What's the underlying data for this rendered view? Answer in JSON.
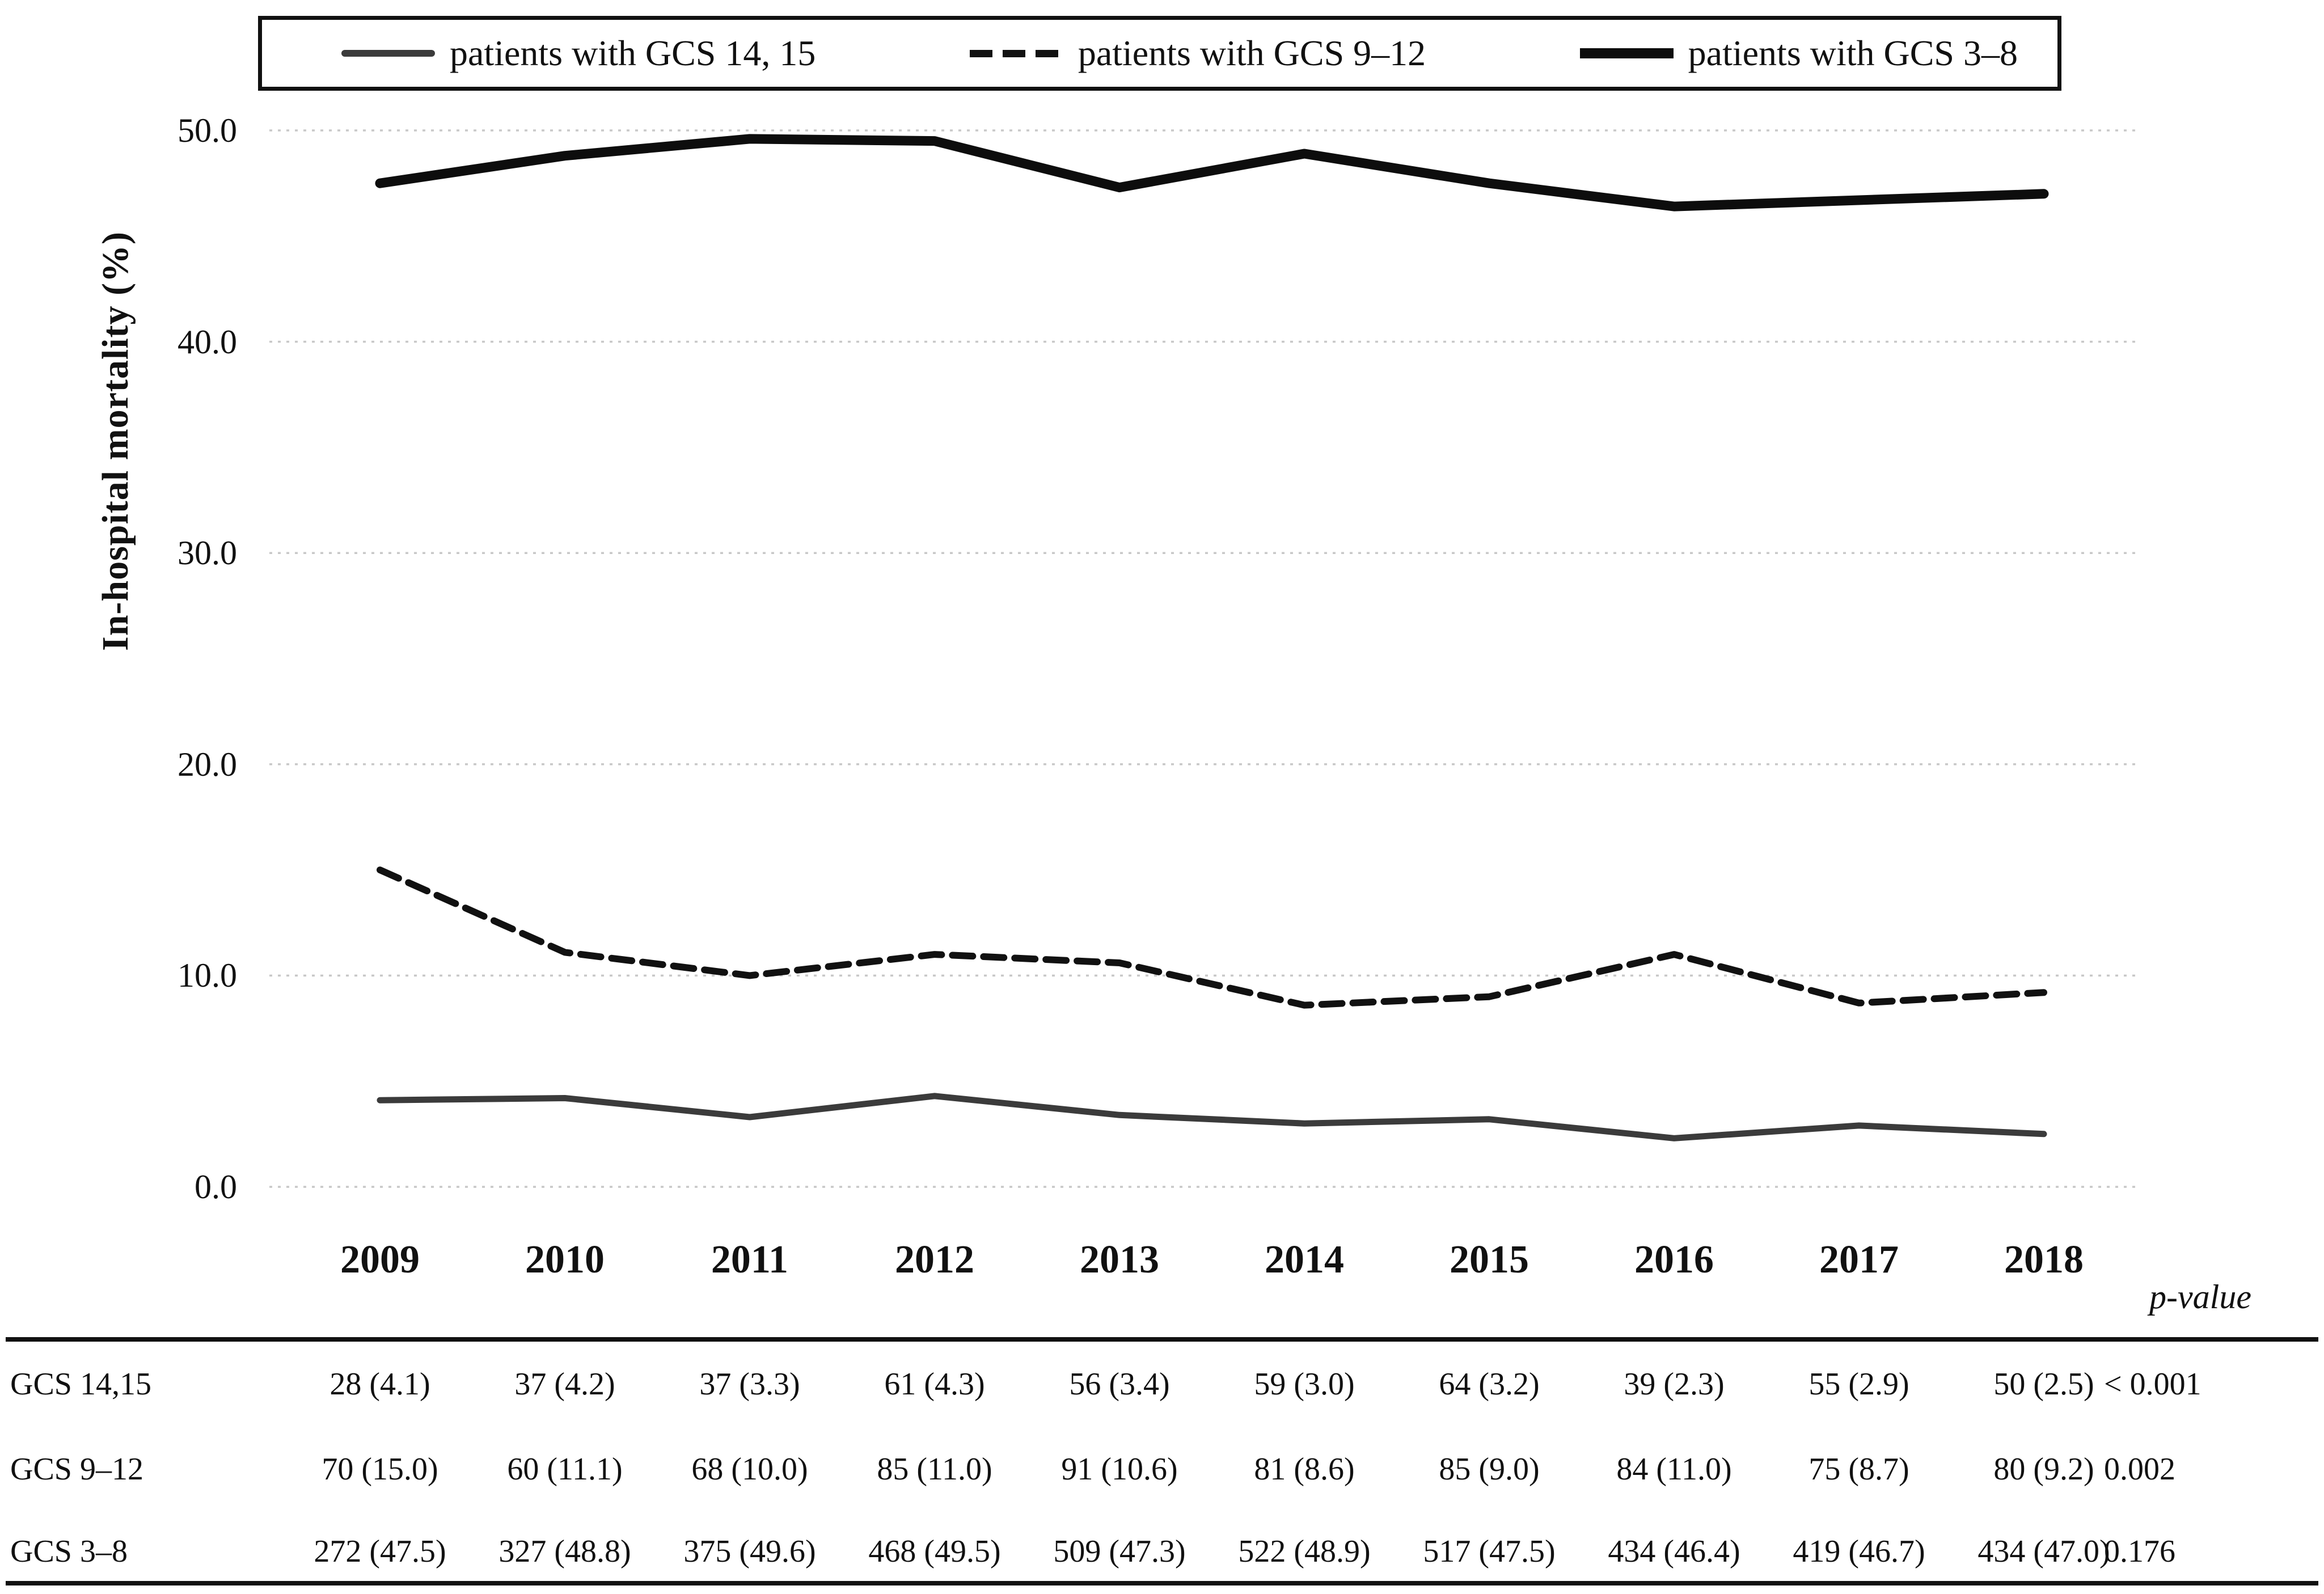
{
  "chart_data": {
    "type": "line",
    "title": "",
    "xlabel": "",
    "ylabel": "In-hospital mortality (%)",
    "ylim": [
      0,
      50
    ],
    "grid": "horizontal-dotted",
    "legend_position": "top",
    "x": [
      "2009",
      "2010",
      "2011",
      "2012",
      "2013",
      "2014",
      "2015",
      "2016",
      "2017",
      "2018"
    ],
    "y_ticks": [
      {
        "label": "50.0",
        "value": 50
      },
      {
        "label": "40.0",
        "value": 40
      },
      {
        "label": "30.0",
        "value": 30
      },
      {
        "label": "20.0",
        "value": 20
      },
      {
        "label": "10.0",
        "value": 10
      },
      {
        "label": "0.0",
        "value": 0
      }
    ],
    "series": [
      {
        "name": "patients with GCS 14, 15",
        "style": "solid-gray-medium",
        "values": [
          4.1,
          4.2,
          3.3,
          4.3,
          3.4,
          3.0,
          3.2,
          2.3,
          2.9,
          2.5
        ]
      },
      {
        "name": "patients with GCS 9–12",
        "style": "dashed-black",
        "values": [
          15.0,
          11.1,
          10.0,
          11.0,
          10.6,
          8.6,
          9.0,
          11.0,
          8.7,
          9.2
        ]
      },
      {
        "name": "patients with GCS 3–8",
        "style": "solid-black-thick",
        "values": [
          47.5,
          48.8,
          49.6,
          49.5,
          47.3,
          48.9,
          47.5,
          46.4,
          46.7,
          47.0
        ]
      }
    ]
  },
  "table": {
    "p_value_header": "p-value",
    "rows": [
      {
        "label": "GCS 14,15",
        "cells": [
          "28 (4.1)",
          "37 (4.2)",
          "37 (3.3)",
          "61 (4.3)",
          "56 (3.4)",
          "59 (3.0)",
          "64 (3.2)",
          "39 (2.3)",
          "55 (2.9)",
          "50 (2.5)"
        ],
        "p_value": "< 0.001"
      },
      {
        "label": "GCS 9–12",
        "cells": [
          "70 (15.0)",
          "60 (11.1)",
          "68 (10.0)",
          "85 (11.0)",
          "91 (10.6)",
          "81 (8.6)",
          "85 (9.0)",
          "84 (11.0)",
          "75 (8.7)",
          "80 (9.2)"
        ],
        "p_value": "0.002"
      },
      {
        "label": "GCS 3–8",
        "cells": [
          "272 (47.5)",
          "327 (48.8)",
          "375 (49.6)",
          "468 (49.5)",
          "509 (47.3)",
          "522 (48.9)",
          "517 (47.5)",
          "434 (46.4)",
          "419 (46.7)",
          "434 (47.0)"
        ],
        "p_value": "0.176"
      }
    ]
  },
  "colors": {
    "background": "#ffffff",
    "text": "#111111",
    "gridline": "#c8c8c8",
    "series_gcs_14_15": "#3b3b3b",
    "series_gcs_9_12": "#111111",
    "series_gcs_3_8": "#0d0d0d"
  }
}
